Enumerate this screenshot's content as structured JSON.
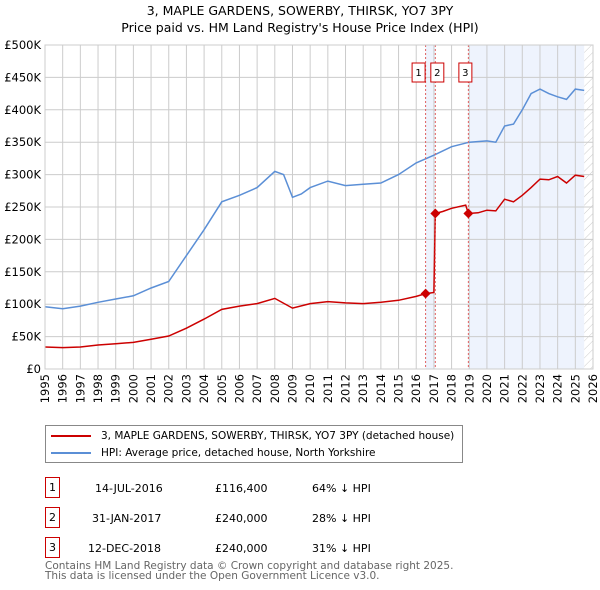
{
  "chart_data": {
    "type": "line",
    "title": "3, MAPLE GARDENS, SOWERBY, THIRSK, YO7 3PY",
    "subtitle": "Price paid vs. HM Land Registry's House Price Index (HPI)",
    "xlim": [
      1995,
      2026
    ],
    "ylim": [
      0,
      500000
    ],
    "x_ticks": [
      "1995",
      "1996",
      "1997",
      "1998",
      "1999",
      "2000",
      "2001",
      "2002",
      "2003",
      "2004",
      "2005",
      "2006",
      "2007",
      "2008",
      "2009",
      "2010",
      "2011",
      "2012",
      "2013",
      "2014",
      "2015",
      "2016",
      "2017",
      "2018",
      "2019",
      "2020",
      "2021",
      "2022",
      "2023",
      "2024",
      "2025",
      "2026"
    ],
    "y_ticks": [
      {
        "v": 0,
        "l": "£0"
      },
      {
        "v": 50000,
        "l": "£50K"
      },
      {
        "v": 100000,
        "l": "£100K"
      },
      {
        "v": 150000,
        "l": "£150K"
      },
      {
        "v": 200000,
        "l": "£200K"
      },
      {
        "v": 250000,
        "l": "£250K"
      },
      {
        "v": 300000,
        "l": "£300K"
      },
      {
        "v": 350000,
        "l": "£350K"
      },
      {
        "v": 400000,
        "l": "£400K"
      },
      {
        "v": 450000,
        "l": "£450K"
      },
      {
        "v": 500000,
        "l": "£500K"
      }
    ],
    "grid": true,
    "series": [
      {
        "name": "3, MAPLE GARDENS, SOWERBY, THIRSK, YO7 3PY (detached house)",
        "color": "#cc0000",
        "x": [
          1995,
          1996,
          1997,
          1998,
          1999,
          2000,
          2001,
          2002,
          2003,
          2004,
          2005,
          2006,
          2007,
          2008,
          2009,
          2010,
          2011,
          2012,
          2013,
          2014,
          2015,
          2016,
          2016.53,
          2017.0,
          2017.08,
          2017.5,
          2018,
          2018.8,
          2018.95,
          2019.5,
          2020,
          2020.5,
          2021,
          2021.5,
          2022,
          2022.5,
          2023,
          2023.5,
          2024,
          2024.5,
          2025,
          2025.5
        ],
        "y": [
          34000,
          33000,
          34000,
          37000,
          39000,
          41000,
          46000,
          51000,
          63000,
          77000,
          92000,
          97000,
          101000,
          109000,
          94000,
          101000,
          104000,
          102000,
          101000,
          103000,
          106000,
          112000,
          116400,
          118000,
          240000,
          243000,
          248000,
          253000,
          240000,
          241000,
          245000,
          244000,
          262000,
          258000,
          268000,
          280000,
          293000,
          292000,
          297000,
          287000,
          299000,
          297000
        ]
      },
      {
        "name": "HPI: Average price, detached house, North Yorkshire",
        "color": "#5b8fd6",
        "x": [
          1995,
          1996,
          1997,
          1998,
          1999,
          2000,
          2001,
          2002,
          2003,
          2004,
          2005,
          2006,
          2007,
          2008,
          2008.5,
          2009,
          2009.5,
          2010,
          2011,
          2012,
          2013,
          2014,
          2015,
          2016,
          2017,
          2018,
          2019,
          2020,
          2020.5,
          2021,
          2021.5,
          2022,
          2022.5,
          2023,
          2023.5,
          2024,
          2024.5,
          2025,
          2025.5
        ],
        "y": [
          96000,
          93000,
          97000,
          103000,
          108000,
          113000,
          125000,
          135000,
          175000,
          215000,
          258000,
          268000,
          280000,
          305000,
          300000,
          265000,
          270000,
          280000,
          290000,
          283000,
          285000,
          287000,
          300000,
          318000,
          330000,
          343000,
          350000,
          352000,
          350000,
          375000,
          378000,
          400000,
          425000,
          432000,
          425000,
          420000,
          416000,
          432000,
          430000
        ]
      }
    ],
    "sales": [
      {
        "label": "1",
        "x": 2016.53,
        "y": 116400
      },
      {
        "label": "2",
        "x": 2017.08,
        "y": 240000
      },
      {
        "label": "3",
        "x": 2018.95,
        "y": 240000
      }
    ],
    "shaded_ranges": [
      [
        2016.53,
        2017.08
      ],
      [
        2018.95,
        2025.5
      ]
    ],
    "forecast_from": 2025.5,
    "legend_placement": "below"
  },
  "transactions": [
    {
      "num": "1",
      "date": "14-JUL-2016",
      "price": "£116,400",
      "hpi": "64% ↓ HPI"
    },
    {
      "num": "2",
      "date": "31-JAN-2017",
      "price": "£240,000",
      "hpi": "28% ↓ HPI"
    },
    {
      "num": "3",
      "date": "12-DEC-2018",
      "price": "£240,000",
      "hpi": "31% ↓ HPI"
    }
  ],
  "footer": {
    "line1": "Contains HM Land Registry data © Crown copyright and database right 2025.",
    "line2": "This data is licensed under the Open Government Licence v3.0."
  }
}
